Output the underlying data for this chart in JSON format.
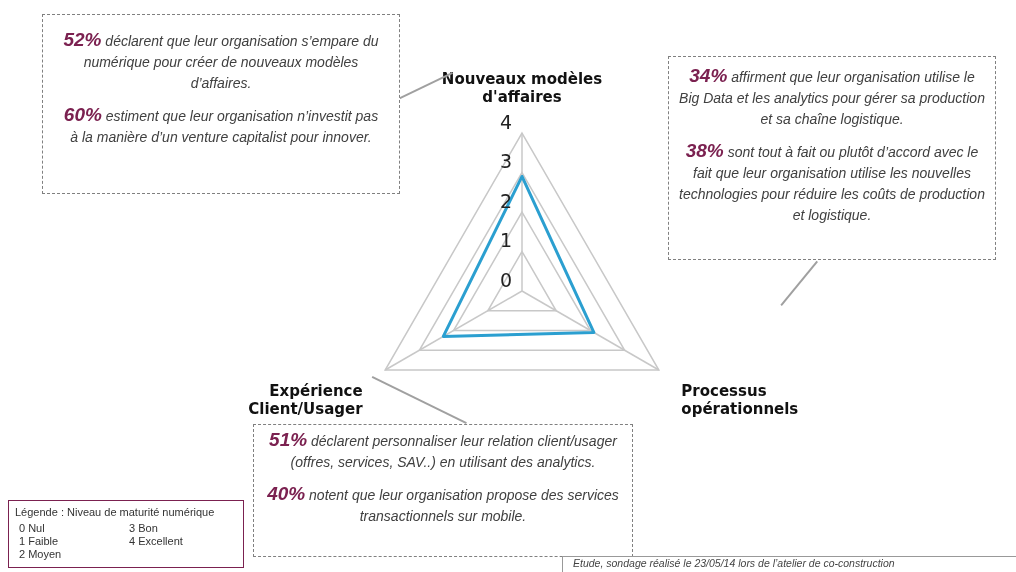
{
  "chart_data": {
    "type": "radar",
    "categories": [
      "Nouveaux modèles d'affaires",
      "Processus opérationnels",
      "Expérience Client/Usager"
    ],
    "series": [
      {
        "color": "#2b9fd0",
        "values": [
          2.9,
          2.1,
          2.3
        ]
      }
    ],
    "ylim": [
      0,
      4
    ],
    "yticks": [
      0,
      1,
      2,
      3,
      4
    ],
    "grid": true,
    "legend": false,
    "marker": "none",
    "annotations": [
      "52% déclarent que leur organisation s’empare du numérique pour créer de nouveaux modèles d’affaires.",
      "60% estiment que leur organisation n’investit pas à la manière d’un venture capitalist pour innover.",
      "34% affirment que leur organisation utilise le Big Data et les analytics pour gérer sa production et sa chaîne logistique.",
      "38% sont tout à fait ou plutôt d’accord avec le fait que leur organisation utilise les nouvelles technologies pour réduire les coûts de production et logistique.",
      "51% déclarent personnaliser leur relation client/usager (offres, services, SAV..) en utilisant des analytics.",
      "40% notent que leur organisation propose des services transactionnels sur mobile.",
      "Légende : Niveau de maturité numérique",
      "0 Nul",
      "1 Faible",
      "2 Moyen",
      "3 Bon",
      "4 Excellent",
      "Etude, sondage réalisé le 23/05/14 lors de l’atelier de co-construction"
    ]
  }
}
